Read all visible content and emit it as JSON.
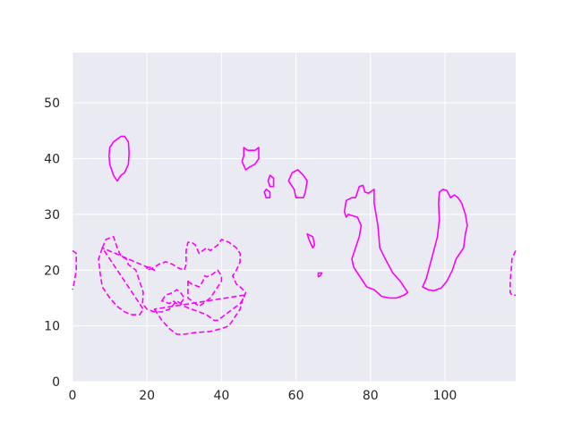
{
  "chart_data": {
    "type": "contour",
    "title": "",
    "xlabel": "",
    "ylabel": "",
    "xlim": [
      0,
      119
    ],
    "ylim": [
      0,
      59
    ],
    "x_ticks": [
      0,
      20,
      40,
      60,
      80,
      100
    ],
    "y_ticks": [
      0,
      10,
      20,
      30,
      40,
      50
    ],
    "grid": true,
    "background": "#eaeaf2",
    "grid_color": "#ffffff",
    "line_color": "#ff00ff",
    "series": [
      {
        "style": "solid",
        "contours": [
          {
            "closed": true,
            "points": [
              [
                10,
                42
              ],
              [
                11,
                43
              ],
              [
                12,
                43.5
              ],
              [
                13,
                44
              ],
              [
                14,
                44
              ],
              [
                15,
                43
              ],
              [
                15.2,
                41
              ],
              [
                15,
                39
              ],
              [
                14,
                37.5
              ],
              [
                13,
                37
              ],
              [
                12,
                36
              ],
              [
                11,
                37
              ],
              [
                10,
                39
              ],
              [
                9.8,
                40.5
              ]
            ]
          },
          {
            "closed": true,
            "points": [
              [
                46,
                42
              ],
              [
                47,
                41.5
              ],
              [
                49,
                41.5
              ],
              [
                50,
                42
              ],
              [
                50,
                40
              ],
              [
                49,
                39
              ],
              [
                47.5,
                38.5
              ],
              [
                46.5,
                38
              ],
              [
                45.5,
                39.5
              ],
              [
                46,
                40.5
              ]
            ]
          },
          {
            "closed": true,
            "points": [
              [
                53,
                37
              ],
              [
                54,
                36.5
              ],
              [
                54,
                35
              ],
              [
                53,
                35
              ],
              [
                52.5,
                36
              ]
            ]
          },
          {
            "closed": true,
            "points": [
              [
                52,
                34.5
              ],
              [
                53,
                34
              ],
              [
                53,
                33
              ],
              [
                52,
                33
              ],
              [
                51.5,
                34
              ]
            ]
          },
          {
            "closed": true,
            "points": [
              [
                58,
                36
              ],
              [
                59,
                37.5
              ],
              [
                60.5,
                38
              ],
              [
                62,
                37
              ],
              [
                63,
                36
              ],
              [
                62.5,
                34
              ],
              [
                62,
                33
              ],
              [
                60,
                33
              ],
              [
                59.5,
                34.5
              ]
            ]
          },
          {
            "closed": true,
            "points": [
              [
                63,
                26.5
              ],
              [
                64.5,
                26
              ],
              [
                65,
                24.5
              ],
              [
                64.5,
                24
              ],
              [
                63.5,
                25.5
              ]
            ]
          },
          {
            "closed": true,
            "points": [
              [
                66,
                19.5
              ],
              [
                67,
                19.5
              ],
              [
                66.5,
                19
              ],
              [
                66,
                18.8
              ]
            ]
          },
          {
            "closed": true,
            "points": [
              [
                73,
                30.5
              ],
              [
                73.5,
                32.5
              ],
              [
                75,
                33
              ],
              [
                76,
                33
              ],
              [
                77,
                35
              ],
              [
                78,
                35.2
              ],
              [
                78.5,
                34
              ],
              [
                79.5,
                33.8
              ],
              [
                81,
                34.5
              ],
              [
                81,
                32
              ],
              [
                82,
                28
              ],
              [
                82.5,
                24
              ],
              [
                84,
                22
              ],
              [
                86,
                19.5
              ],
              [
                88,
                18
              ],
              [
                90,
                16
              ],
              [
                89,
                15.5
              ],
              [
                87,
                15
              ],
              [
                85,
                15
              ],
              [
                83,
                15.3
              ],
              [
                81,
                16.5
              ],
              [
                79,
                17
              ],
              [
                77,
                19
              ],
              [
                75.5,
                20.5
              ],
              [
                75,
                22
              ],
              [
                76,
                24
              ],
              [
                77,
                26
              ],
              [
                77.5,
                28
              ],
              [
                76.5,
                29.5
              ],
              [
                74,
                30
              ],
              [
                73.5,
                29.5
              ]
            ]
          },
          {
            "closed": true,
            "points": [
              [
                94,
                17
              ],
              [
                95,
                18.5
              ],
              [
                96,
                21
              ],
              [
                97,
                23.5
              ],
              [
                98,
                26
              ],
              [
                98.5,
                29
              ],
              [
                98.3,
                32
              ],
              [
                98.5,
                34
              ],
              [
                99.5,
                34.5
              ],
              [
                100.5,
                34.3
              ],
              [
                101.5,
                33
              ],
              [
                102.5,
                33.5
              ],
              [
                103.5,
                33
              ],
              [
                104.5,
                32
              ],
              [
                105.5,
                30
              ],
              [
                106,
                28
              ],
              [
                105.5,
                26.5
              ],
              [
                105,
                24
              ],
              [
                104,
                23
              ],
              [
                103,
                22
              ],
              [
                102,
                20
              ],
              [
                100.5,
                18
              ],
              [
                99,
                16.8
              ],
              [
                97,
                16.3
              ],
              [
                95.5,
                16.5
              ]
            ]
          }
        ]
      },
      {
        "style": "dashed",
        "contours": [
          {
            "closed": false,
            "points": [
              [
                0,
                23.5
              ],
              [
                1,
                23
              ],
              [
                1,
                20
              ],
              [
                0.5,
                18
              ],
              [
                0,
                16.5
              ]
            ]
          },
          {
            "closed": false,
            "points": [
              [
                119,
                23.5
              ],
              [
                118,
                22
              ],
              [
                117.8,
                20
              ],
              [
                117.5,
                18
              ],
              [
                117.5,
                16
              ],
              [
                118,
                15.5
              ],
              [
                119,
                15.5
              ]
            ]
          },
          {
            "closed": true,
            "points": [
              [
                8,
                24
              ],
              [
                9,
                25.5
              ],
              [
                11,
                26
              ],
              [
                12,
                24
              ],
              [
                13,
                22.5
              ],
              [
                14.5,
                22
              ],
              [
                15,
                21
              ],
              [
                17,
                20
              ],
              [
                18,
                18
              ],
              [
                19,
                16
              ],
              [
                18.8,
                14
              ],
              [
                20,
                13
              ],
              [
                22,
                12.5
              ],
              [
                24,
                12.5
              ],
              [
                26,
                13
              ],
              [
                28,
                14.5
              ],
              [
                30,
                13.5
              ],
              [
                32,
                13
              ],
              [
                34,
                12.5
              ],
              [
                36,
                12
              ],
              [
                37,
                11.5
              ],
              [
                38,
                11
              ],
              [
                39,
                11
              ],
              [
                40,
                11.5
              ],
              [
                41,
                12
              ],
              [
                42,
                12.5
              ],
              [
                43,
                13
              ],
              [
                44,
                13.5
              ],
              [
                45,
                14
              ],
              [
                46,
                15
              ],
              [
                46.5,
                16
              ],
              [
                45,
                17
              ],
              [
                44,
                17.5
              ],
              [
                43,
                19
              ],
              [
                44,
                20
              ],
              [
                45,
                21.5
              ],
              [
                45,
                23
              ],
              [
                44,
                24
              ],
              [
                42,
                25
              ],
              [
                40,
                25.5
              ],
              [
                39,
                24.5
              ],
              [
                38,
                24
              ],
              [
                37,
                23.5
              ],
              [
                36,
                24
              ],
              [
                34,
                23
              ],
              [
                33,
                24.5
              ],
              [
                32,
                25
              ],
              [
                31,
                25
              ],
              [
                30.5,
                23.5
              ],
              [
                30.5,
                21
              ],
              [
                30,
                20
              ],
              [
                28,
                20.5
              ],
              [
                27,
                21
              ],
              [
                25,
                21.5
              ],
              [
                23,
                21
              ],
              [
                22,
                20.5
              ],
              [
                20,
                20
              ],
              [
                20,
                20.5
              ],
              [
                21,
                20.5
              ],
              [
                22,
                20
              ]
            ]
          },
          {
            "closed": true,
            "points": [
              [
                24,
                14.5
              ],
              [
                25,
                15.5
              ],
              [
                27,
                16
              ],
              [
                28,
                16.5
              ],
              [
                29,
                16
              ],
              [
                30,
                15
              ],
              [
                29,
                14
              ],
              [
                28,
                14
              ],
              [
                27,
                14.5
              ],
              [
                26,
                14
              ]
            ]
          },
          {
            "closed": true,
            "points": [
              [
                22,
                13
              ],
              [
                24,
                11
              ],
              [
                26,
                9.5
              ],
              [
                28,
                8.5
              ],
              [
                30,
                8.5
              ],
              [
                33,
                8.8
              ],
              [
                37,
                9
              ],
              [
                40,
                9.5
              ],
              [
                42,
                10
              ],
              [
                43,
                11
              ],
              [
                45,
                13
              ],
              [
                46,
                15.5
              ]
            ]
          },
          {
            "closed": true,
            "points": [
              [
                8,
                24
              ],
              [
                7,
                22
              ],
              [
                7.5,
                19
              ],
              [
                8,
                17
              ],
              [
                10,
                15
              ],
              [
                12,
                13.5
              ],
              [
                14,
                12.5
              ],
              [
                16,
                12
              ],
              [
                18,
                12
              ],
              [
                19,
                13
              ]
            ]
          },
          {
            "closed": true,
            "points": [
              [
                31,
                18
              ],
              [
                32,
                17.5
              ],
              [
                34,
                17
              ],
              [
                35,
                18
              ],
              [
                35.5,
                19
              ],
              [
                36,
                18.8
              ],
              [
                37,
                19
              ],
              [
                38,
                19.5
              ],
              [
                39,
                20
              ],
              [
                40,
                19
              ],
              [
                40,
                18
              ],
              [
                39,
                17
              ],
              [
                38,
                16
              ],
              [
                37,
                15
              ],
              [
                36,
                14.5
              ],
              [
                35,
                14
              ],
              [
                34,
                13.5
              ],
              [
                33,
                14
              ],
              [
                32,
                14.5
              ],
              [
                31,
                15
              ]
            ]
          }
        ]
      }
    ]
  }
}
